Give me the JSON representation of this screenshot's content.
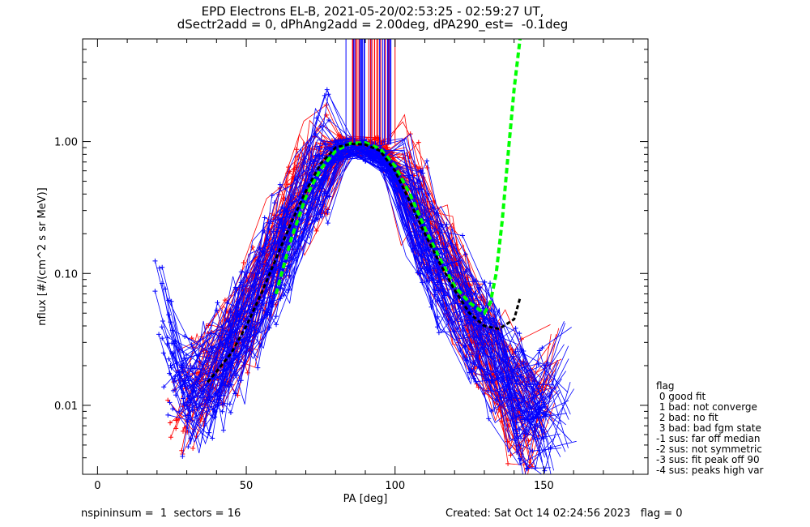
{
  "title_line1": "EPD Electrons EL-B, 2021-05-20/02:53:25 - 02:59:27 UT,",
  "title_line2": "dSectr2add = 0, dPhAng2add = 2.00deg, dPA290_est=  -0.1deg",
  "footer": {
    "left": "nspininsum =  1  sectors = 16",
    "right": "Created: Sat Oct 14 02:24:56 2023   flag = 0"
  },
  "legend": {
    "title": "flag",
    "items": [
      " 0 good fit",
      " 1 bad: not converge",
      " 2 bad: no fit",
      " 3 bad: bad fgm state",
      "-1 sus: far off median",
      "-2 sus: not symmetric",
      "-3 sus: fit peak off 90",
      "-4 sus: peaks high var"
    ]
  },
  "chart_data": {
    "type": "line",
    "xlabel": "PA [deg]",
    "ylabel": "nflux [#/(cm^2 s sr MeV)]",
    "xlim": [
      -5,
      185
    ],
    "ylim": [
      0.003,
      6.0
    ],
    "yscale": "log",
    "x_ticks": [
      0,
      50,
      100,
      150
    ],
    "x_tick_labels": [
      "0",
      "50",
      "100",
      "150"
    ],
    "y_ticks": [
      0.01,
      0.1,
      1.0
    ],
    "y_tick_labels": [
      "0.01",
      "0.10",
      "1.00"
    ],
    "colors": {
      "series_a": "#0000ff",
      "series_b": "#ff0000",
      "fit": "#00ff00",
      "median": "#000000"
    },
    "series_mean_blue": {
      "x": [
        20,
        25,
        30,
        35,
        40,
        45,
        50,
        55,
        60,
        65,
        70,
        75,
        80,
        85,
        90,
        95,
        100,
        105,
        110,
        115,
        120,
        125,
        130,
        135,
        140,
        145,
        150,
        155,
        160
      ],
      "y": [
        0.1,
        0.02,
        0.012,
        0.015,
        0.018,
        0.025,
        0.04,
        0.07,
        0.12,
        0.2,
        0.35,
        0.6,
        0.85,
        0.9,
        0.85,
        0.8,
        0.6,
        0.35,
        0.2,
        0.12,
        0.07,
        0.045,
        0.03,
        0.018,
        0.012,
        0.009,
        0.008,
        0.01,
        0.018
      ]
    },
    "series_mean_red": {
      "x": [
        25,
        30,
        35,
        40,
        45,
        50,
        55,
        60,
        65,
        70,
        75,
        80,
        85,
        90,
        95,
        100,
        105,
        110,
        115,
        120,
        125,
        130,
        135,
        140,
        145,
        150,
        155
      ],
      "y": [
        0.01,
        0.012,
        0.015,
        0.02,
        0.03,
        0.05,
        0.09,
        0.16,
        0.28,
        0.45,
        0.7,
        0.95,
        0.95,
        0.9,
        0.9,
        0.7,
        0.45,
        0.28,
        0.16,
        0.09,
        0.05,
        0.03,
        0.018,
        0.01,
        0.008,
        0.01,
        0.02
      ]
    },
    "spike_region": {
      "x_from": 85.5,
      "x_to": 99,
      "y_bottom": 0.95
    },
    "fit_green": {
      "x": [
        60,
        65,
        70,
        75,
        80,
        85,
        90,
        95,
        100,
        105,
        110,
        115,
        120,
        125,
        130,
        132,
        134,
        136,
        138,
        140,
        142
      ],
      "y": [
        0.07,
        0.18,
        0.38,
        0.62,
        0.85,
        0.97,
        0.98,
        0.88,
        0.65,
        0.4,
        0.22,
        0.13,
        0.08,
        0.06,
        0.05,
        0.06,
        0.1,
        0.25,
        0.8,
        2.5,
        6.0
      ]
    },
    "median_black": {
      "x": [
        37,
        40,
        45,
        50,
        55,
        60,
        65,
        70,
        75,
        80,
        85,
        90,
        95,
        100,
        105,
        110,
        115,
        120,
        125,
        130,
        135,
        140,
        142
      ],
      "y": [
        0.015,
        0.018,
        0.025,
        0.04,
        0.07,
        0.13,
        0.24,
        0.42,
        0.68,
        0.9,
        0.96,
        0.95,
        0.85,
        0.6,
        0.35,
        0.2,
        0.12,
        0.075,
        0.05,
        0.04,
        0.038,
        0.045,
        0.065
      ]
    }
  }
}
